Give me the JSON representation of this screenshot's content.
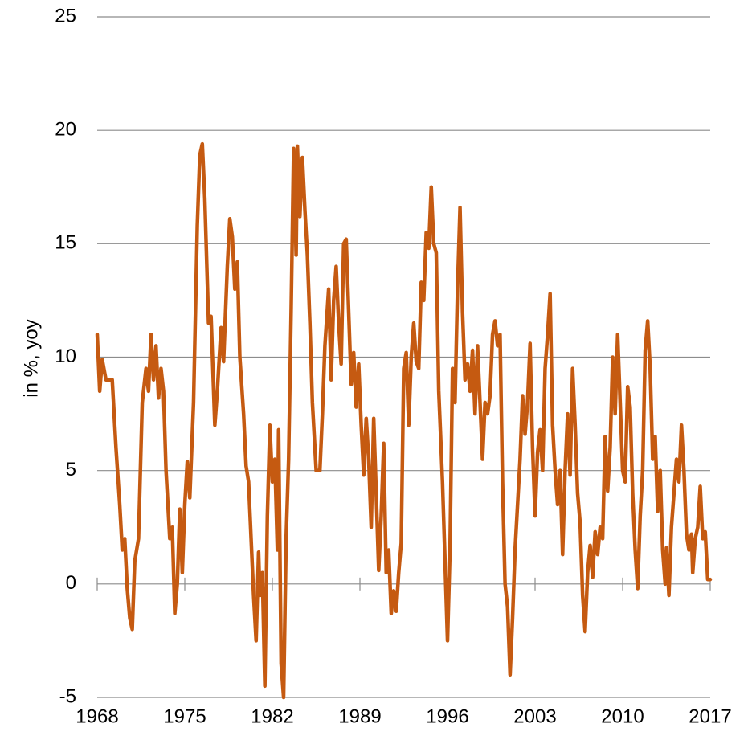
{
  "chart_data": {
    "type": "line",
    "y_label": "in %, yoy",
    "color": "#c55a11",
    "x": [
      1968.0,
      1968.2,
      1968.4,
      1968.7,
      1969.2,
      1969.5,
      1969.8,
      1970.0,
      1970.2,
      1970.4,
      1970.6,
      1970.8,
      1971.0,
      1971.3,
      1971.6,
      1971.9,
      1972.1,
      1972.3,
      1972.5,
      1972.7,
      1972.9,
      1973.1,
      1973.3,
      1973.5,
      1973.8,
      1974.0,
      1974.2,
      1974.4,
      1974.6,
      1974.8,
      1975.0,
      1975.2,
      1975.4,
      1975.7,
      1976.0,
      1976.2,
      1976.4,
      1976.6,
      1976.9,
      1977.1,
      1977.4,
      1977.6,
      1977.9,
      1978.1,
      1978.4,
      1978.6,
      1978.8,
      1979.0,
      1979.2,
      1979.4,
      1979.7,
      1979.9,
      1980.1,
      1980.3,
      1980.5,
      1980.7,
      1980.9,
      1981.0,
      1981.2,
      1981.4,
      1981.6,
      1981.8,
      1982.0,
      1982.2,
      1982.4,
      1982.5,
      1982.7,
      1982.9,
      1983.1,
      1983.3,
      1983.5,
      1983.7,
      1983.9,
      1984.0,
      1984.2,
      1984.4,
      1984.6,
      1984.8,
      1985.0,
      1985.2,
      1985.5,
      1985.8,
      1986.0,
      1986.2,
      1986.5,
      1986.7,
      1986.9,
      1987.1,
      1987.3,
      1987.5,
      1987.7,
      1987.9,
      1988.1,
      1988.3,
      1988.5,
      1988.7,
      1988.9,
      1989.1,
      1989.3,
      1989.5,
      1989.7,
      1989.9,
      1990.1,
      1990.3,
      1990.5,
      1990.7,
      1990.9,
      1991.1,
      1991.3,
      1991.5,
      1991.7,
      1991.9,
      1992.1,
      1992.3,
      1992.5,
      1992.7,
      1992.9,
      1993.1,
      1993.3,
      1993.5,
      1993.7,
      1993.9,
      1994.1,
      1994.3,
      1994.5,
      1994.7,
      1994.9,
      1995.1,
      1995.3,
      1995.6,
      1995.8,
      1996.0,
      1996.2,
      1996.4,
      1996.6,
      1996.8,
      1997.0,
      1997.2,
      1997.4,
      1997.6,
      1997.8,
      1998.0,
      1998.2,
      1998.4,
      1998.6,
      1998.8,
      1999.0,
      1999.2,
      1999.4,
      1999.6,
      1999.8,
      2000.0,
      2000.2,
      2000.4,
      2000.6,
      2000.8,
      2001.0,
      2001.2,
      2001.4,
      2001.6,
      2001.8,
      2002.0,
      2002.2,
      2002.4,
      2002.6,
      2002.8,
      2003.0,
      2003.2,
      2003.4,
      2003.6,
      2003.8,
      2004.0,
      2004.2,
      2004.4,
      2004.6,
      2004.8,
      2005.0,
      2005.2,
      2005.4,
      2005.6,
      2005.8,
      2006.0,
      2006.2,
      2006.4,
      2006.6,
      2006.8,
      2007.0,
      2007.2,
      2007.4,
      2007.6,
      2007.8,
      2008.0,
      2008.2,
      2008.4,
      2008.6,
      2008.8,
      2009.0,
      2009.2,
      2009.4,
      2009.6,
      2009.8,
      2010.0,
      2010.2,
      2010.4,
      2010.6,
      2010.8,
      2011.0,
      2011.2,
      2011.4,
      2011.6,
      2011.8,
      2012.0,
      2012.2,
      2012.4,
      2012.6,
      2012.8,
      2013.0,
      2013.2,
      2013.4,
      2013.5,
      2013.7,
      2013.9,
      2014.1,
      2014.3,
      2014.5,
      2014.7,
      2014.9,
      2015.1,
      2015.3,
      2015.5,
      2015.6,
      2015.8,
      2016.0,
      2016.2,
      2016.4,
      2016.6,
      2016.8,
      2017.0
    ],
    "values": [
      11,
      8.5,
      9.9,
      9,
      9,
      6,
      3.5,
      1.5,
      2,
      -0.2,
      -1.5,
      -2,
      1,
      2,
      8,
      9.5,
      8.5,
      11,
      9,
      10.5,
      8.2,
      9.5,
      8.5,
      5,
      2,
      2.5,
      -1.3,
      0,
      3.3,
      0.5,
      3.5,
      5.4,
      3.8,
      8,
      15.8,
      18.9,
      19.4,
      17,
      11.5,
      11.8,
      7,
      8.5,
      11.3,
      9.8,
      14,
      16.1,
      15.3,
      13,
      14.2,
      10,
      7.5,
      5.2,
      4.5,
      2,
      -0.5,
      -2.5,
      1.4,
      -0.5,
      0.5,
      -4.5,
      3,
      7,
      4.5,
      5.5,
      1.5,
      6.8,
      -3.5,
      -5,
      2,
      5.5,
      12,
      19.2,
      14.5,
      19.3,
      16.2,
      18.8,
      16.5,
      14.5,
      11.5,
      8,
      5,
      5,
      7.5,
      10.5,
      13,
      9,
      12.5,
      14,
      11.5,
      9.7,
      15,
      15.2,
      12,
      8.8,
      10.2,
      7.8,
      9.7,
      7,
      4.8,
      7.3,
      5.5,
      2.5,
      7.3,
      4,
      0.6,
      3,
      6.2,
      0.5,
      1.5,
      -1.3,
      -0.3,
      -1.2,
      0.5,
      1.8,
      9.5,
      10.2,
      7,
      10,
      11.5,
      9.8,
      9.5,
      13.3,
      12.5,
      15.5,
      14.8,
      17.5,
      15,
      14.6,
      8.5,
      4.5,
      1,
      -2.5,
      1.5,
      9.5,
      8,
      13,
      16.6,
      12,
      9,
      9.7,
      8.5,
      10.3,
      7.5,
      10.5,
      8,
      5.5,
      8,
      7.5,
      8.3,
      11,
      11.6,
      10.5,
      11,
      4.5,
      0,
      -1,
      -4,
      -1.5,
      1.5,
      3.5,
      5.5,
      8.3,
      6.6,
      8,
      10.6,
      6,
      3,
      5.8,
      6.8,
      5,
      9.5,
      11,
      12.8,
      7,
      5,
      3.5,
      5,
      1.3,
      5,
      7.5,
      4.8,
      9.5,
      7,
      4,
      2.7,
      -0.5,
      -2.1,
      0.5,
      1.7,
      0.3,
      2.3,
      1.3,
      2.5,
      2,
      6.5,
      4.1,
      6,
      10,
      7.5,
      11,
      8,
      5,
      4.5,
      8.7,
      7.8,
      4,
      1.5,
      -0.2,
      3,
      5,
      10.3,
      11.6,
      9.5,
      5.5,
      6.5,
      3.2,
      5,
      1.5,
      0,
      1.6,
      -0.5,
      2.5,
      4,
      5.5,
      4.5,
      7,
      5,
      2.2,
      1.5,
      2.2,
      0.5,
      2,
      2.5,
      4.3,
      2,
      2.3,
      0.2,
      0.2
    ],
    "xlim": [
      1968,
      2017
    ],
    "xticks": [
      1968,
      1975,
      1982,
      1989,
      1996,
      2003,
      2010,
      2017
    ],
    "ylim": [
      -5,
      25
    ],
    "yticks": [
      -5,
      0,
      5,
      10,
      15,
      20,
      25
    ],
    "grid": true
  }
}
